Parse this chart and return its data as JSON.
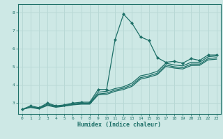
{
  "xlabel": "Humidex (Indice chaleur)",
  "bg_color": "#cde8e5",
  "grid_color": "#b8d8d5",
  "line_color": "#1e7068",
  "xlim": [
    -0.5,
    23.5
  ],
  "ylim": [
    2.4,
    8.45
  ],
  "yticks": [
    3,
    4,
    5,
    6,
    7,
    8
  ],
  "xticks": [
    0,
    1,
    2,
    3,
    4,
    5,
    6,
    7,
    8,
    9,
    10,
    11,
    12,
    13,
    14,
    15,
    16,
    17,
    18,
    19,
    20,
    21,
    22,
    23
  ],
  "lines": [
    {
      "x": [
        0,
        1,
        2,
        3,
        4,
        5,
        6,
        7,
        8,
        9,
        10,
        11,
        12,
        13,
        14,
        15,
        16,
        17,
        18,
        19,
        20,
        21,
        22,
        23
      ],
      "y": [
        2.65,
        2.85,
        2.75,
        3.0,
        2.85,
        2.9,
        3.0,
        3.05,
        3.05,
        3.75,
        3.75,
        6.5,
        7.9,
        7.4,
        6.65,
        6.45,
        5.5,
        5.25,
        5.3,
        5.2,
        5.45,
        5.35,
        5.65,
        5.65
      ],
      "marker": true
    },
    {
      "x": [
        0,
        1,
        2,
        3,
        4,
        5,
        6,
        7,
        8,
        9,
        10,
        11,
        12,
        13,
        14,
        15,
        16,
        17,
        18,
        19,
        20,
        21,
        22,
        23
      ],
      "y": [
        2.65,
        2.8,
        2.72,
        2.95,
        2.82,
        2.88,
        2.95,
        3.0,
        3.0,
        3.6,
        3.65,
        3.8,
        3.9,
        4.1,
        4.5,
        4.6,
        4.75,
        5.2,
        5.1,
        5.05,
        5.25,
        5.25,
        5.55,
        5.6
      ],
      "marker": false
    },
    {
      "x": [
        0,
        1,
        2,
        3,
        4,
        5,
        6,
        7,
        8,
        9,
        10,
        11,
        12,
        13,
        14,
        15,
        16,
        17,
        18,
        19,
        20,
        21,
        22,
        23
      ],
      "y": [
        2.65,
        2.78,
        2.7,
        2.9,
        2.8,
        2.85,
        2.92,
        2.97,
        2.97,
        3.5,
        3.55,
        3.72,
        3.82,
        4.0,
        4.4,
        4.5,
        4.65,
        5.1,
        5.0,
        4.95,
        5.15,
        5.15,
        5.45,
        5.5
      ],
      "marker": false
    },
    {
      "x": [
        0,
        1,
        2,
        3,
        4,
        5,
        6,
        7,
        8,
        9,
        10,
        11,
        12,
        13,
        14,
        15,
        16,
        17,
        18,
        19,
        20,
        21,
        22,
        23
      ],
      "y": [
        2.65,
        2.76,
        2.68,
        2.87,
        2.77,
        2.83,
        2.9,
        2.94,
        2.94,
        3.45,
        3.48,
        3.65,
        3.75,
        3.92,
        4.32,
        4.43,
        4.57,
        5.02,
        4.93,
        4.88,
        5.07,
        5.08,
        5.38,
        5.42
      ],
      "marker": false
    }
  ]
}
